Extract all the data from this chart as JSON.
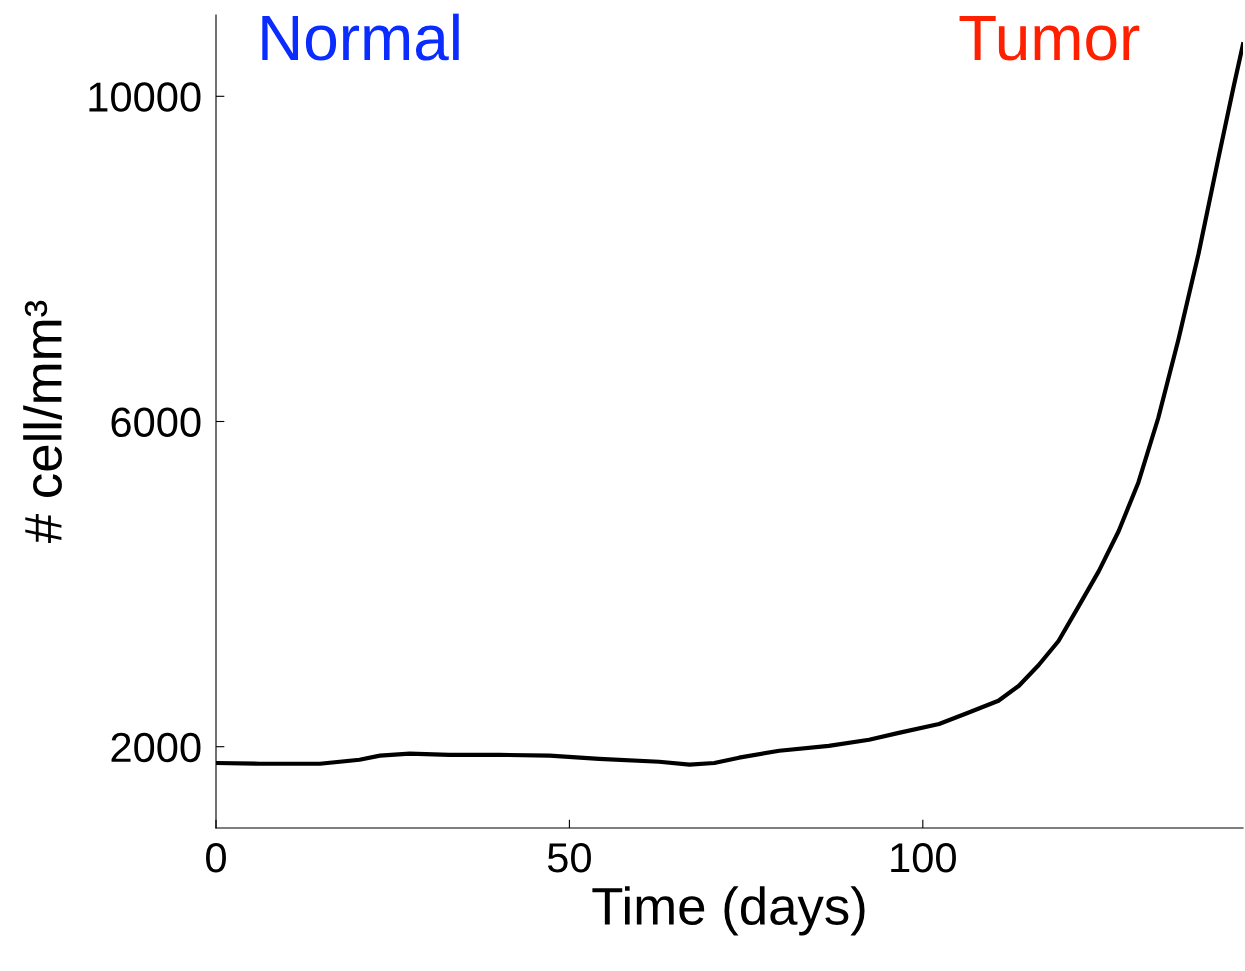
{
  "chart_data": {
    "type": "line",
    "xlabel": "Time (days)",
    "ylabel": "# cell/mm³",
    "annotations": [
      "Normal",
      "Tumor"
    ],
    "x": [
      0,
      6.2,
      14.7,
      20.3,
      23.2,
      27.4,
      33,
      40.1,
      47.2,
      54.2,
      62.7,
      67,
      70.5,
      74,
      79.7,
      86.7,
      92.4,
      96.6,
      102.3,
      106.5,
      110.7,
      113.6,
      116.4,
      119.2,
      122,
      124.9,
      127.7,
      130.5,
      133.3,
      136.2,
      139,
      141.8,
      143.9,
      145.3
    ],
    "series": [
      {
        "color": "#000000",
        "values": [
          1800,
          1790,
          1790,
          1840,
          1890,
          1915,
          1900,
          1900,
          1890,
          1850,
          1815,
          1780,
          1800,
          1865,
          1950,
          2010,
          2085,
          2170,
          2280,
          2420,
          2565,
          2750,
          3005,
          3300,
          3720,
          4160,
          4650,
          5250,
          6040,
          7020,
          8060,
          9230,
          10090,
          10640
        ]
      }
    ],
    "xlim": [
      0,
      145.3
    ],
    "ylim": [
      1000,
      11000
    ],
    "xticks": [
      0,
      50,
      100
    ],
    "yticks": [
      2000,
      6000,
      10000
    ],
    "grid": false,
    "legend": false,
    "marker": "none",
    "line_style": "solid"
  }
}
